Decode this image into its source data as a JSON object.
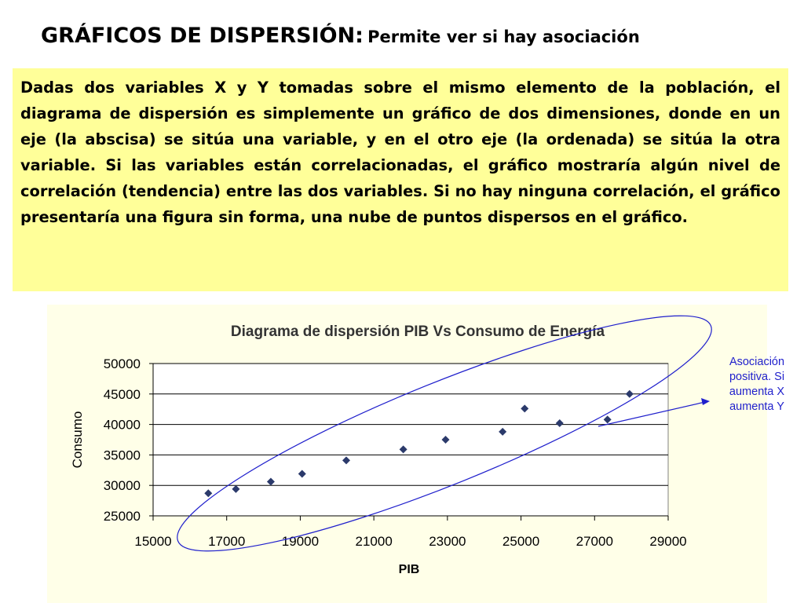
{
  "header": {
    "title_main": "GRÁFICOS DE DISPERSIÓN:",
    "title_sub": "Permite ver si hay asociación"
  },
  "body_text": "Dadas dos variables X y Y tomadas sobre el mismo elemento de la población, el diagrama de dispersión es simplemente un gráfico de dos dimensiones, donde en un eje (la abscisa) se sitúa una variable, y en el otro eje (la ordenada) se sitúa la otra variable. Si las variables están correlacionadas, el gráfico mostraría algún nivel de correlación (tendencia) entre las dos variables. Si no hay ninguna correlación, el gráfico presentaría una figura sin forma, una nube de puntos dispersos en el gráfico.",
  "annotation": {
    "text": "Asociación positiva. Si aumenta X aumenta Y",
    "color": "#1f1fcc"
  },
  "colors": {
    "text_box_bg": "#ffff99",
    "chart_bg": "#ffffe8",
    "marker": "#2b3a6b",
    "ellipse": "#1f1fcc"
  },
  "chart_data": {
    "type": "scatter",
    "title": "Diagrama de dispersión PIB Vs Consumo de Energía",
    "xlabel": "PIB",
    "ylabel": "Consumo",
    "xlim": [
      15000,
      29000
    ],
    "ylim": [
      25000,
      50000
    ],
    "xticks": [
      15000,
      17000,
      19000,
      21000,
      23000,
      25000,
      27000,
      29000
    ],
    "yticks": [
      25000,
      30000,
      35000,
      40000,
      45000,
      50000
    ],
    "grid": "horizontal",
    "legend": "none",
    "points": [
      {
        "x": 16500,
        "y": 28700
      },
      {
        "x": 17250,
        "y": 29400
      },
      {
        "x": 18200,
        "y": 30600
      },
      {
        "x": 19050,
        "y": 31900
      },
      {
        "x": 20250,
        "y": 34100
      },
      {
        "x": 21800,
        "y": 35900
      },
      {
        "x": 22950,
        "y": 37500
      },
      {
        "x": 24500,
        "y": 38800
      },
      {
        "x": 25100,
        "y": 42600
      },
      {
        "x": 26050,
        "y": 40200
      },
      {
        "x": 27350,
        "y": 40800
      },
      {
        "x": 27950,
        "y": 45000
      }
    ]
  }
}
